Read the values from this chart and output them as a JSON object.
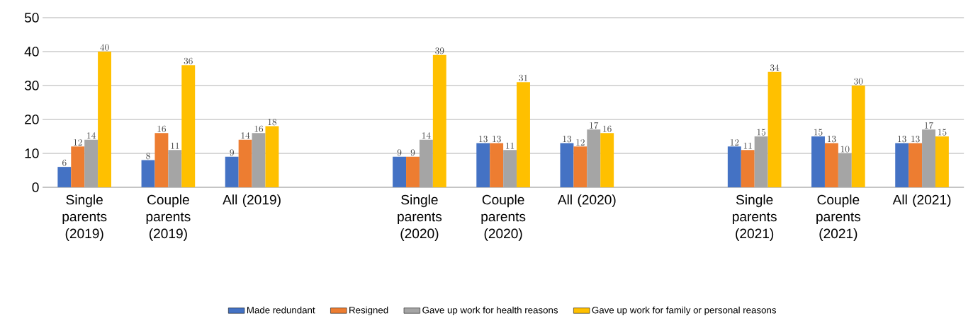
{
  "chart_data": {
    "type": "bar",
    "categories": [
      "Single parents (2019)",
      "Couple parents (2019)",
      "All (2019)",
      null,
      "Single parents (2020)",
      "Couple parents (2020)",
      "All (2020)",
      null,
      "Single parents (2021)",
      "Couple parents (2021)",
      "All (2021)"
    ],
    "series": [
      {
        "name": "Made redundant",
        "color": "#4472c4",
        "values": [
          6,
          8,
          9,
          null,
          9,
          13,
          13,
          null,
          12,
          15,
          13
        ]
      },
      {
        "name": "Resigned",
        "color": "#ed7d31",
        "values": [
          12,
          16,
          14,
          null,
          9,
          13,
          12,
          null,
          11,
          13,
          13
        ]
      },
      {
        "name": "Gave up work for health reasons",
        "color": "#a5a5a5",
        "values": [
          14,
          11,
          16,
          null,
          14,
          11,
          17,
          null,
          15,
          10,
          17
        ]
      },
      {
        "name": "Gave up work for family or personal reasons",
        "color": "#ffc000",
        "values": [
          40,
          36,
          18,
          null,
          39,
          31,
          16,
          null,
          34,
          30,
          15
        ]
      }
    ],
    "ylim": [
      0,
      50
    ],
    "yticks": [
      0,
      10,
      20,
      30,
      40,
      50
    ],
    "grid": "y",
    "legend": "bottom",
    "data_labels": true
  }
}
